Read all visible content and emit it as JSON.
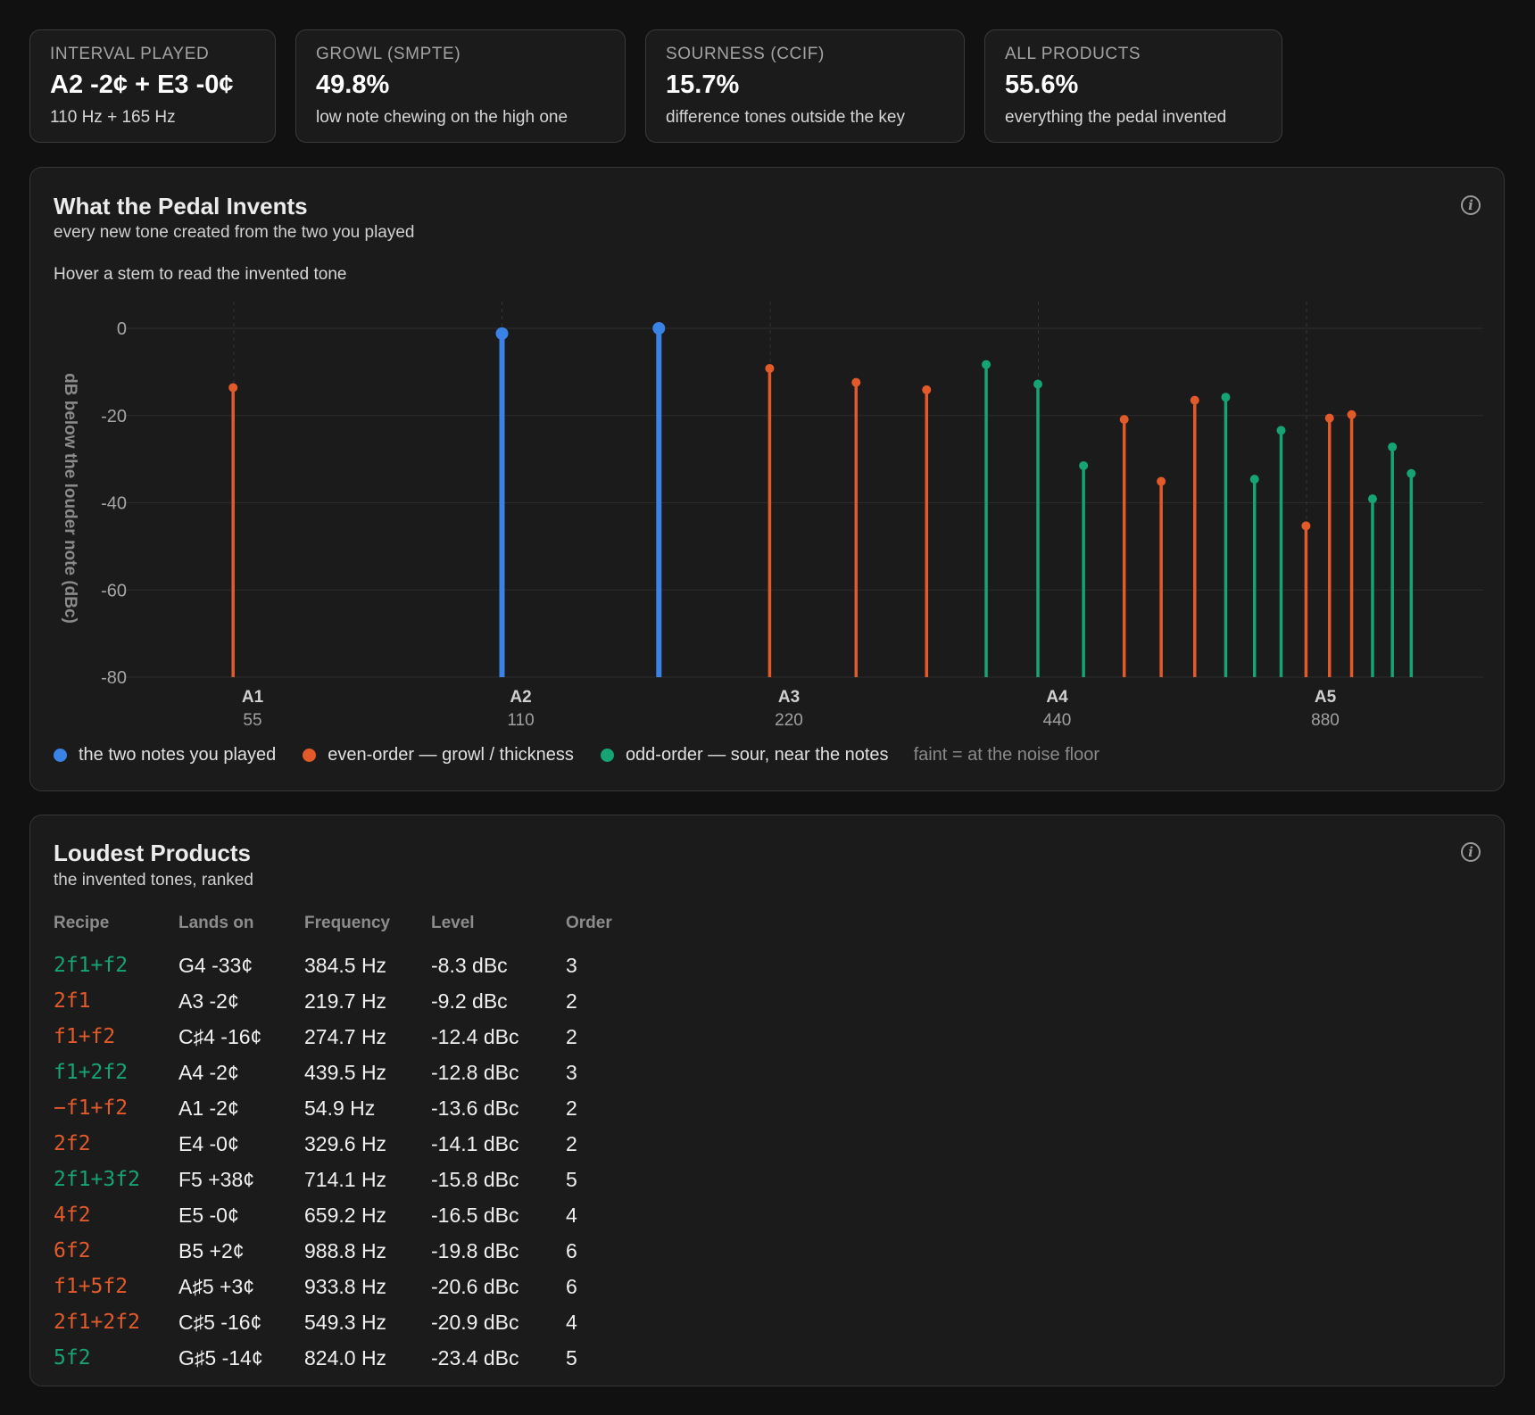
{
  "stats": [
    {
      "label": "INTERVAL PLAYED",
      "value": "A2 -2¢ + E3 -0¢",
      "sub": "110 Hz + 165 Hz"
    },
    {
      "label": "GROWL (SMPTE)",
      "value": "49.8%",
      "sub": "low note chewing on the high one"
    },
    {
      "label": "SOURNESS (CCIF)",
      "value": "15.7%",
      "sub": "difference tones outside the key"
    },
    {
      "label": "ALL PRODUCTS",
      "value": "55.6%",
      "sub": "everything the pedal invented"
    }
  ],
  "chart_panel": {
    "title": "What the Pedal Invents",
    "subtitle": "every new tone created from the two you played",
    "hint": "Hover a stem to read the invented tone",
    "info_icon": "info-icon"
  },
  "legend": {
    "played": "the two notes you played",
    "even": "even-order — growl / thickness",
    "odd": "odd-order — sour, near the notes",
    "note": "faint = at the noise floor"
  },
  "colors": {
    "played": "#3b82e6",
    "even": "#e35a2a",
    "odd": "#17a474"
  },
  "chart_data": {
    "type": "stem",
    "ylabel": "dB below the louder note (dBc)",
    "ylim": [
      -80,
      0
    ],
    "yticks": [
      0,
      -20,
      -40,
      -60,
      -80
    ],
    "x_scale": "log2",
    "xlim_hz": [
      50,
      1200
    ],
    "xticks": [
      {
        "note": "A1",
        "hz": 55
      },
      {
        "note": "A2",
        "hz": 110
      },
      {
        "note": "A3",
        "hz": 220
      },
      {
        "note": "A4",
        "hz": 440
      },
      {
        "note": "A5",
        "hz": 880
      }
    ],
    "grid": true,
    "stems": [
      {
        "hz": 54.9,
        "db": -13.6,
        "kind": "even"
      },
      {
        "hz": 110,
        "db": -1.2,
        "kind": "played"
      },
      {
        "hz": 165,
        "db": 0,
        "kind": "played"
      },
      {
        "hz": 219.7,
        "db": -9.2,
        "kind": "even"
      },
      {
        "hz": 274.7,
        "db": -12.4,
        "kind": "even"
      },
      {
        "hz": 329.6,
        "db": -14.1,
        "kind": "even"
      },
      {
        "hz": 384.5,
        "db": -8.3,
        "kind": "odd"
      },
      {
        "hz": 439.5,
        "db": -12.8,
        "kind": "odd"
      },
      {
        "hz": 494.5,
        "db": -31.5,
        "kind": "odd"
      },
      {
        "hz": 549.3,
        "db": -20.9,
        "kind": "even"
      },
      {
        "hz": 604.4,
        "db": -35.1,
        "kind": "even"
      },
      {
        "hz": 659.2,
        "db": -16.5,
        "kind": "even"
      },
      {
        "hz": 714.1,
        "db": -15.8,
        "kind": "odd"
      },
      {
        "hz": 769.3,
        "db": -34.6,
        "kind": "odd"
      },
      {
        "hz": 824.0,
        "db": -23.4,
        "kind": "odd"
      },
      {
        "hz": 878.8,
        "db": -45.3,
        "kind": "even"
      },
      {
        "hz": 933.8,
        "db": -20.6,
        "kind": "even"
      },
      {
        "hz": 988.8,
        "db": -19.8,
        "kind": "even"
      },
      {
        "hz": 1043.7,
        "db": -39.1,
        "kind": "odd"
      },
      {
        "hz": 1098.6,
        "db": -27.2,
        "kind": "odd"
      },
      {
        "hz": 1153.5,
        "db": -33.3,
        "kind": "odd"
      }
    ]
  },
  "products_panel": {
    "title": "Loudest Products",
    "subtitle": "the invented tones, ranked",
    "info_icon": "info-icon",
    "columns": [
      "Recipe",
      "Lands on",
      "Frequency",
      "Level",
      "Order"
    ],
    "rows": [
      {
        "recipe": "2f1+f2",
        "lands": "G4 -33¢",
        "freq": "384.5 Hz",
        "level": "-8.3 dBc",
        "order": "3",
        "kind": "odd"
      },
      {
        "recipe": "2f1",
        "lands": "A3 -2¢",
        "freq": "219.7 Hz",
        "level": "-9.2 dBc",
        "order": "2",
        "kind": "even"
      },
      {
        "recipe": "f1+f2",
        "lands": "C♯4 -16¢",
        "freq": "274.7 Hz",
        "level": "-12.4 dBc",
        "order": "2",
        "kind": "even"
      },
      {
        "recipe": "f1+2f2",
        "lands": "A4 -2¢",
        "freq": "439.5 Hz",
        "level": "-12.8 dBc",
        "order": "3",
        "kind": "odd"
      },
      {
        "recipe": "−f1+f2",
        "lands": "A1 -2¢",
        "freq": "54.9 Hz",
        "level": "-13.6 dBc",
        "order": "2",
        "kind": "even"
      },
      {
        "recipe": "2f2",
        "lands": "E4 -0¢",
        "freq": "329.6 Hz",
        "level": "-14.1 dBc",
        "order": "2",
        "kind": "even"
      },
      {
        "recipe": "2f1+3f2",
        "lands": "F5 +38¢",
        "freq": "714.1 Hz",
        "level": "-15.8 dBc",
        "order": "5",
        "kind": "odd"
      },
      {
        "recipe": "4f2",
        "lands": "E5 -0¢",
        "freq": "659.2 Hz",
        "level": "-16.5 dBc",
        "order": "4",
        "kind": "even"
      },
      {
        "recipe": "6f2",
        "lands": "B5 +2¢",
        "freq": "988.8 Hz",
        "level": "-19.8 dBc",
        "order": "6",
        "kind": "even"
      },
      {
        "recipe": "f1+5f2",
        "lands": "A♯5 +3¢",
        "freq": "933.8 Hz",
        "level": "-20.6 dBc",
        "order": "6",
        "kind": "even"
      },
      {
        "recipe": "2f1+2f2",
        "lands": "C♯5 -16¢",
        "freq": "549.3 Hz",
        "level": "-20.9 dBc",
        "order": "4",
        "kind": "even"
      },
      {
        "recipe": "5f2",
        "lands": "G♯5 -14¢",
        "freq": "824.0 Hz",
        "level": "-23.4 dBc",
        "order": "5",
        "kind": "odd"
      }
    ]
  }
}
